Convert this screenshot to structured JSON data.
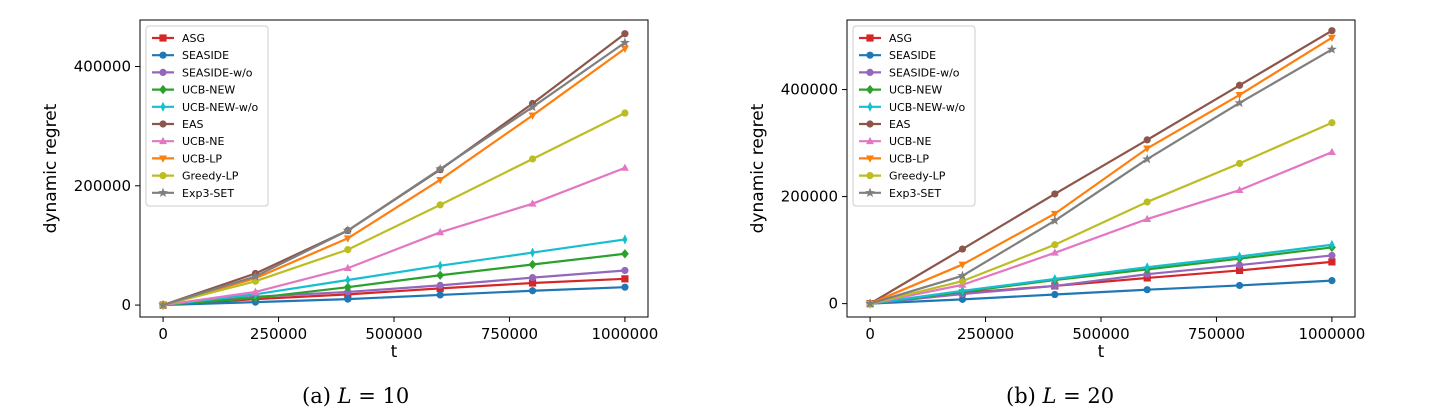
{
  "marker_shapes": {
    "ASG": "square",
    "SEASIDE": "circle",
    "SEASIDE-w/o": "circle",
    "UCB-NEW": "diamond",
    "UCB-NEW-w/o": "thin-diamond",
    "EAS": "circle",
    "UCB-NE": "triangle-up",
    "UCB-LP": "triangle-down",
    "Greedy-LP": "circle",
    "Exp3-SET": "star"
  },
  "colors": {
    "ASG": "#d62728",
    "SEASIDE": "#1f77b4",
    "SEASIDE-w/o": "#9467bd",
    "UCB-NEW": "#2ca02c",
    "UCB-NEW-w/o": "#17becf",
    "EAS": "#8c564b",
    "UCB-NE": "#e377c2",
    "UCB-LP": "#ff7f0e",
    "Greedy-LP": "#bcbd22",
    "Exp3-SET": "#7f7f7f"
  },
  "chart_data": [
    {
      "type": "line",
      "caption_prefix": "(a) ",
      "caption_var": "L",
      "caption_suffix": " = 10",
      "xlabel": "t",
      "ylabel": "dynamic regret",
      "xlim": [
        -50000,
        1050000
      ],
      "ylim": [
        -20000,
        478000
      ],
      "xticks": [
        0,
        250000,
        500000,
        750000,
        1000000
      ],
      "yticks": [
        0,
        200000,
        400000
      ],
      "legend": "top-left",
      "grid": false,
      "x": [
        0,
        200000,
        400000,
        600000,
        800000,
        1000000
      ],
      "series": [
        {
          "name": "ASG",
          "values": [
            0,
            10000,
            18000,
            28000,
            37000,
            44000
          ]
        },
        {
          "name": "SEASIDE",
          "values": [
            0,
            5000,
            10000,
            17000,
            24000,
            30000
          ]
        },
        {
          "name": "SEASIDE-w/o",
          "values": [
            0,
            14000,
            22000,
            33000,
            46000,
            58000
          ]
        },
        {
          "name": "UCB-NEW",
          "values": [
            0,
            12000,
            30000,
            50000,
            68000,
            86000
          ]
        },
        {
          "name": "UCB-NEW-w/o",
          "values": [
            0,
            18000,
            42000,
            66000,
            88000,
            110000
          ]
        },
        {
          "name": "EAS",
          "values": [
            0,
            53000,
            125000,
            227000,
            338000,
            455000
          ]
        },
        {
          "name": "UCB-NE",
          "values": [
            0,
            22000,
            62000,
            122000,
            170000,
            230000
          ]
        },
        {
          "name": "UCB-LP",
          "values": [
            0,
            45000,
            112000,
            210000,
            318000,
            430000
          ]
        },
        {
          "name": "Greedy-LP",
          "values": [
            0,
            40000,
            93000,
            168000,
            245000,
            322000
          ]
        },
        {
          "name": "Exp3-SET",
          "values": [
            0,
            48000,
            125000,
            228000,
            332000,
            440000
          ]
        }
      ]
    },
    {
      "type": "line",
      "caption_prefix": "(b) ",
      "caption_var": "L",
      "caption_suffix": " = 20",
      "xlabel": "t",
      "ylabel": "dynamic regret",
      "xlim": [
        -50000,
        1050000
      ],
      "ylim": [
        -25000,
        530000
      ],
      "xticks": [
        0,
        250000,
        500000,
        750000,
        1000000
      ],
      "yticks": [
        0,
        200000,
        400000
      ],
      "legend": "top-left",
      "grid": false,
      "x": [
        0,
        200000,
        400000,
        600000,
        800000,
        1000000
      ],
      "series": [
        {
          "name": "ASG",
          "values": [
            0,
            20000,
            33000,
            48000,
            62000,
            78000
          ]
        },
        {
          "name": "SEASIDE",
          "values": [
            0,
            8000,
            17000,
            26000,
            34000,
            43000
          ]
        },
        {
          "name": "SEASIDE-w/o",
          "values": [
            0,
            18000,
            33000,
            55000,
            72000,
            90000
          ]
        },
        {
          "name": "UCB-NEW",
          "values": [
            0,
            22000,
            44000,
            64000,
            84000,
            105000
          ]
        },
        {
          "name": "UCB-NEW-w/o",
          "values": [
            0,
            24000,
            46000,
            68000,
            88000,
            110000
          ]
        },
        {
          "name": "EAS",
          "values": [
            0,
            102000,
            205000,
            306000,
            408000,
            510000
          ]
        },
        {
          "name": "UCB-NE",
          "values": [
            0,
            35000,
            95000,
            158000,
            212000,
            283000
          ]
        },
        {
          "name": "UCB-LP",
          "values": [
            0,
            73000,
            168000,
            290000,
            390000,
            497000
          ]
        },
        {
          "name": "Greedy-LP",
          "values": [
            0,
            42000,
            110000,
            190000,
            262000,
            338000
          ]
        },
        {
          "name": "Exp3-SET",
          "values": [
            0,
            52000,
            155000,
            270000,
            375000,
            475000
          ]
        }
      ]
    }
  ]
}
